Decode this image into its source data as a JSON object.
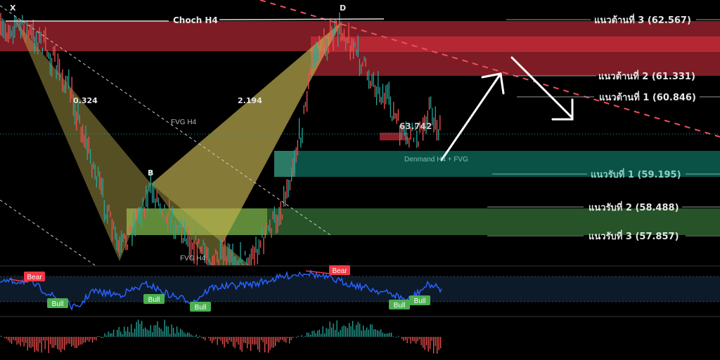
{
  "colors": {
    "bear": "#f23645",
    "bull": "#4caf50",
    "rsi": "#2962ff",
    "resistance": "#7d1c24",
    "resistance_bright": "#b52833",
    "demand": "#0a5246",
    "support": "#265428"
  },
  "chart_data": {
    "type": "line",
    "title": "",
    "pattern_points": {
      "X": "X",
      "B": "B",
      "D": "D"
    },
    "ratios": [
      "0.324",
      "2.194"
    ],
    "annotations": {
      "choch": "Choch H4",
      "fvg_top": "FVG H4",
      "fvg_bottom": "FVG H4",
      "demand": "Denmand H4 + FVG",
      "price": "63.742"
    },
    "levels": [
      {
        "label": "แนวต้านที่ 3 (62.567)",
        "value": 62.567,
        "type": "resistance"
      },
      {
        "label": "แนวต้านที่ 2 (61.331)",
        "value": 61.331,
        "type": "resistance"
      },
      {
        "label": "แนวต้านที่ 1 (60.846)",
        "value": 60.846,
        "type": "resistance"
      },
      {
        "label": "แนวรับที่ 1 (59.195)",
        "value": 59.195,
        "type": "support"
      },
      {
        "label": "แนวรับที่ 2 (58.488)",
        "value": 58.488,
        "type": "support"
      },
      {
        "label": "แนวรับที่ 3 (57.857)",
        "value": 57.857,
        "type": "support"
      }
    ],
    "rsi_signals": [
      "Bear",
      "Bull",
      "Bull",
      "Bull",
      "Bear",
      "Bull",
      "Bull"
    ]
  }
}
